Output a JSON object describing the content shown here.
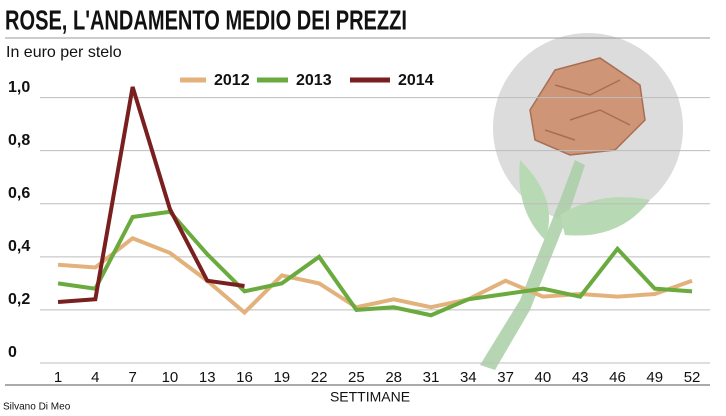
{
  "chart_data": {
    "type": "line",
    "title": "ROSE, L'ANDAMENTO MEDIO DEI PREZZI",
    "subtitle": "In euro per stelo",
    "x_label": "SETTIMANE",
    "credit": "Silvano Di Meo",
    "x": [
      1,
      4,
      7,
      10,
      13,
      16,
      19,
      22,
      25,
      28,
      31,
      34,
      37,
      40,
      43,
      46,
      49,
      52
    ],
    "xlim": [
      0,
      53
    ],
    "xticks": [
      1,
      4,
      7,
      10,
      13,
      16,
      19,
      22,
      25,
      28,
      31,
      34,
      37,
      40,
      43,
      46,
      49,
      52
    ],
    "ylim": [
      0,
      1.07
    ],
    "yticks": [
      0,
      {
        "value": 0.2,
        "label": "0,2"
      },
      {
        "value": 0.4,
        "label": "0,4"
      },
      {
        "value": 0.6,
        "label": "0,6"
      },
      {
        "value": 0.8,
        "label": "0,8"
      },
      {
        "value": 1,
        "label": "1,0"
      }
    ],
    "grid": true,
    "series": [
      {
        "name": "2012",
        "color": "#e3b27c",
        "values": [
          0.37,
          0.36,
          0.47,
          0.415,
          0.31,
          0.19,
          0.33,
          0.3,
          0.21,
          0.24,
          0.21,
          0.24,
          0.31,
          0.25,
          0.26,
          0.25,
          0.26,
          0.31
        ]
      },
      {
        "name": "2013",
        "color": "#6aaa3f",
        "values": [
          0.3,
          0.28,
          0.55,
          0.57,
          0.41,
          0.27,
          0.3,
          0.4,
          0.2,
          0.21,
          0.18,
          0.24,
          0.26,
          0.28,
          0.25,
          0.43,
          0.28,
          0.27
        ]
      },
      {
        "name": "2014",
        "color": "#7a1f1f",
        "values": [
          0.23,
          0.24,
          1.04,
          0.58,
          0.31,
          0.29,
          null,
          null,
          null,
          null,
          null,
          null,
          null,
          null,
          null,
          null,
          null,
          null
        ]
      }
    ]
  }
}
